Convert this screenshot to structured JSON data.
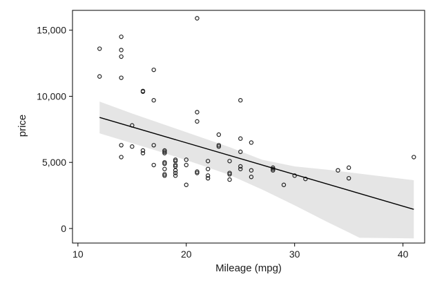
{
  "chart_data": {
    "type": "scatter",
    "xlabel": "Mileage (mpg)",
    "ylabel": "price",
    "xlim": [
      9.5,
      42
    ],
    "ylim": [
      -1100,
      16500
    ],
    "x_ticks": [
      10,
      20,
      30,
      40
    ],
    "y_ticks": [
      0,
      5000,
      10000,
      15000
    ],
    "x_tick_labels": [
      "10",
      "20",
      "30",
      "40"
    ],
    "y_tick_labels": [
      "0",
      "5,000",
      "10,000",
      "15,000"
    ],
    "points": [
      {
        "x": 12,
        "y": 13600
      },
      {
        "x": 12,
        "y": 11500
      },
      {
        "x": 14,
        "y": 14500
      },
      {
        "x": 14,
        "y": 13500
      },
      {
        "x": 14,
        "y": 13000
      },
      {
        "x": 14,
        "y": 11400
      },
      {
        "x": 14,
        "y": 6300
      },
      {
        "x": 14,
        "y": 5400
      },
      {
        "x": 15,
        "y": 7800
      },
      {
        "x": 15,
        "y": 6200
      },
      {
        "x": 16,
        "y": 10400
      },
      {
        "x": 16,
        "y": 10350
      },
      {
        "x": 16,
        "y": 5900
      },
      {
        "x": 16,
        "y": 5700
      },
      {
        "x": 17,
        "y": 12000
      },
      {
        "x": 17,
        "y": 9700
      },
      {
        "x": 17,
        "y": 6300
      },
      {
        "x": 17,
        "y": 4800
      },
      {
        "x": 18,
        "y": 5900
      },
      {
        "x": 18,
        "y": 5800
      },
      {
        "x": 18,
        "y": 5700
      },
      {
        "x": 18,
        "y": 5000
      },
      {
        "x": 18,
        "y": 4900
      },
      {
        "x": 18,
        "y": 4500
      },
      {
        "x": 18,
        "y": 4100
      },
      {
        "x": 18,
        "y": 4000
      },
      {
        "x": 19,
        "y": 5200
      },
      {
        "x": 19,
        "y": 5100
      },
      {
        "x": 19,
        "y": 4800
      },
      {
        "x": 19,
        "y": 4700
      },
      {
        "x": 19,
        "y": 4400
      },
      {
        "x": 19,
        "y": 4200
      },
      {
        "x": 19,
        "y": 4000
      },
      {
        "x": 20,
        "y": 5200
      },
      {
        "x": 20,
        "y": 4800
      },
      {
        "x": 20,
        "y": 3300
      },
      {
        "x": 21,
        "y": 15900
      },
      {
        "x": 21,
        "y": 8800
      },
      {
        "x": 21,
        "y": 8100
      },
      {
        "x": 21,
        "y": 4300
      },
      {
        "x": 21,
        "y": 4200
      },
      {
        "x": 22,
        "y": 5100
      },
      {
        "x": 22,
        "y": 4500
      },
      {
        "x": 22,
        "y": 4000
      },
      {
        "x": 22,
        "y": 3800
      },
      {
        "x": 23,
        "y": 7100
      },
      {
        "x": 23,
        "y": 6300
      },
      {
        "x": 23,
        "y": 6200
      },
      {
        "x": 24,
        "y": 5100
      },
      {
        "x": 24,
        "y": 4200
      },
      {
        "x": 24,
        "y": 4100
      },
      {
        "x": 24,
        "y": 3700
      },
      {
        "x": 25,
        "y": 9700
      },
      {
        "x": 25,
        "y": 6800
      },
      {
        "x": 25,
        "y": 5800
      },
      {
        "x": 25,
        "y": 4700
      },
      {
        "x": 25,
        "y": 4500
      },
      {
        "x": 26,
        "y": 6500
      },
      {
        "x": 26,
        "y": 4400
      },
      {
        "x": 26,
        "y": 3900
      },
      {
        "x": 28,
        "y": 4600
      },
      {
        "x": 28,
        "y": 4500
      },
      {
        "x": 28,
        "y": 4400
      },
      {
        "x": 29,
        "y": 3300
      },
      {
        "x": 30,
        "y": 4000
      },
      {
        "x": 31,
        "y": 3750
      },
      {
        "x": 34,
        "y": 4400
      },
      {
        "x": 35,
        "y": 4600
      },
      {
        "x": 35,
        "y": 3800
      },
      {
        "x": 41,
        "y": 5400
      }
    ],
    "fit_line": {
      "x": [
        12,
        41
      ],
      "y": [
        8400,
        1450
      ]
    },
    "confidence_band": {
      "x": [
        12,
        15,
        18,
        21,
        24,
        27,
        30,
        33,
        36,
        41
      ],
      "lower": [
        7200,
        6450,
        5700,
        4900,
        4050,
        2950,
        1750,
        500,
        -700,
        -750
      ],
      "upper": [
        9600,
        8700,
        7850,
        7000,
        6150,
        5200,
        4700,
        4450,
        4150,
        3650
      ]
    },
    "colors": {
      "band": "#e5e5e5",
      "line": "#000000",
      "marker": "#222222"
    },
    "grid": false,
    "legend": "none"
  }
}
